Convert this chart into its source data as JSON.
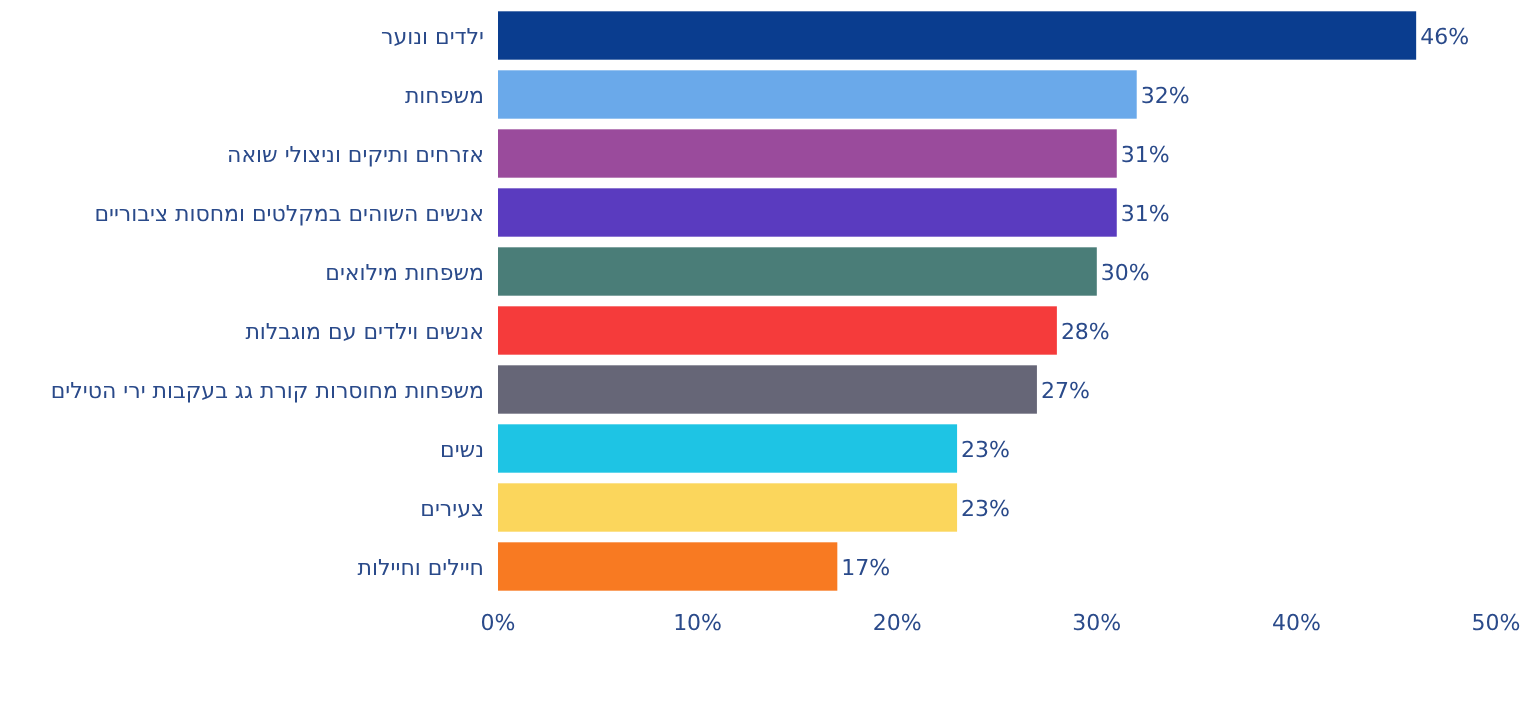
{
  "chart_data": {
    "type": "bar",
    "orientation": "horizontal",
    "categories": [
      "ילדים ונוער",
      "משפחות",
      "אזרחים ותיקים וניצולי שואה",
      "אנשים השוהים במקלטים ומחסות ציבוריים",
      "משפחות מילואים",
      "אנשים וילדים עם מוגבלות",
      "משפחות מחוסרות קורת גג בעקבות ירי הטילים",
      "נשים",
      "צעירים",
      "חיילים וחיילות"
    ],
    "values": [
      46,
      32,
      31,
      31,
      30,
      28,
      27,
      23,
      23,
      17
    ],
    "colors": [
      "#0a3d8f",
      "#6aa9ea",
      "#9a4b9c",
      "#5a3bbf",
      "#4a7d78",
      "#f53b3b",
      "#666677",
      "#1ec4e4",
      "#fbd65c",
      "#f87a22"
    ],
    "value_labels": [
      "46%",
      "32%",
      "31%",
      "31%",
      "30%",
      "28%",
      "27%",
      "23%",
      "23%",
      "17%"
    ],
    "xlim": [
      0,
      50
    ],
    "xticks": [
      {
        "value": 0,
        "label": "0%"
      },
      {
        "value": 10,
        "label": "10%"
      },
      {
        "value": 20,
        "label": "20%"
      },
      {
        "value": 30,
        "label": "30%"
      },
      {
        "value": 40,
        "label": "40%"
      },
      {
        "value": 50,
        "label": "50%"
      }
    ],
    "grid": false
  }
}
